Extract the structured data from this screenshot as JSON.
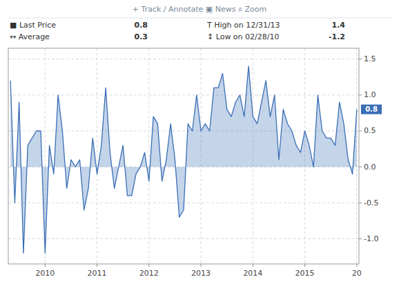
{
  "chart_data": {
    "type": "area",
    "color": "#3b6fb6",
    "grid": true,
    "categories": [
      null,
      null,
      null,
      null,
      null,
      null,
      null,
      null,
      "2010",
      null,
      null,
      null,
      null,
      null,
      null,
      null,
      null,
      null,
      null,
      null,
      "2011",
      null,
      null,
      null,
      null,
      null,
      null,
      null,
      null,
      null,
      null,
      null,
      "2012",
      null,
      null,
      null,
      null,
      null,
      null,
      null,
      null,
      null,
      null,
      null,
      "2013",
      null,
      null,
      null,
      null,
      null,
      null,
      null,
      null,
      null,
      null,
      null,
      "2014",
      null,
      null,
      null,
      null,
      null,
      null,
      null,
      null,
      null,
      null,
      null,
      "2015",
      null,
      null,
      null,
      null,
      null,
      null,
      null,
      null,
      null,
      null,
      null,
      "20"
    ],
    "values": [
      1.2,
      -0.5,
      0.9,
      -1.2,
      0.3,
      0.4,
      0.5,
      0.5,
      -1.2,
      0.3,
      -0.1,
      1.0,
      0.5,
      -0.3,
      0.1,
      0.0,
      0.1,
      -0.6,
      -0.3,
      0.4,
      -0.1,
      0.3,
      1.1,
      0.2,
      -0.3,
      0.0,
      0.3,
      -0.4,
      -0.4,
      -0.1,
      0.0,
      0.2,
      -0.2,
      0.7,
      0.6,
      -0.2,
      0.1,
      0.6,
      0.1,
      -0.7,
      -0.6,
      0.6,
      0.5,
      1.0,
      0.5,
      0.6,
      0.5,
      1.1,
      1.1,
      1.3,
      0.8,
      0.7,
      0.9,
      1.0,
      0.7,
      1.4,
      0.7,
      0.6,
      0.9,
      1.2,
      0.7,
      1.0,
      0.1,
      0.8,
      0.6,
      0.5,
      0.3,
      0.2,
      0.5,
      0.3,
      0.0,
      1.0,
      0.5,
      0.4,
      0.4,
      0.3,
      0.9,
      0.6,
      0.1,
      -0.1,
      0.8
    ],
    "ylim": [
      -1.35,
      1.65
    ],
    "yticks": [
      {
        "value": -1.0,
        "label": "-1.0"
      },
      -0.5,
      {
        "value": 0.0,
        "label": "0.0"
      },
      0.5,
      {
        "value": 1.0,
        "label": "1.0"
      },
      1.5
    ],
    "annotations": [
      {
        "text": "+ Track   / Annotate   ▣ News   ⌕ Zoom"
      },
      {
        "text": "■ Last Price",
        "value": 0.8
      },
      {
        "text": "T High on 12/31/13",
        "value": 1.4
      },
      {
        "text": "↔ Average",
        "value": 0.3
      },
      {
        "text": "↕ Low on 02/28/10",
        "value": -1.2
      },
      {
        "y": 0.8
      }
    ]
  }
}
